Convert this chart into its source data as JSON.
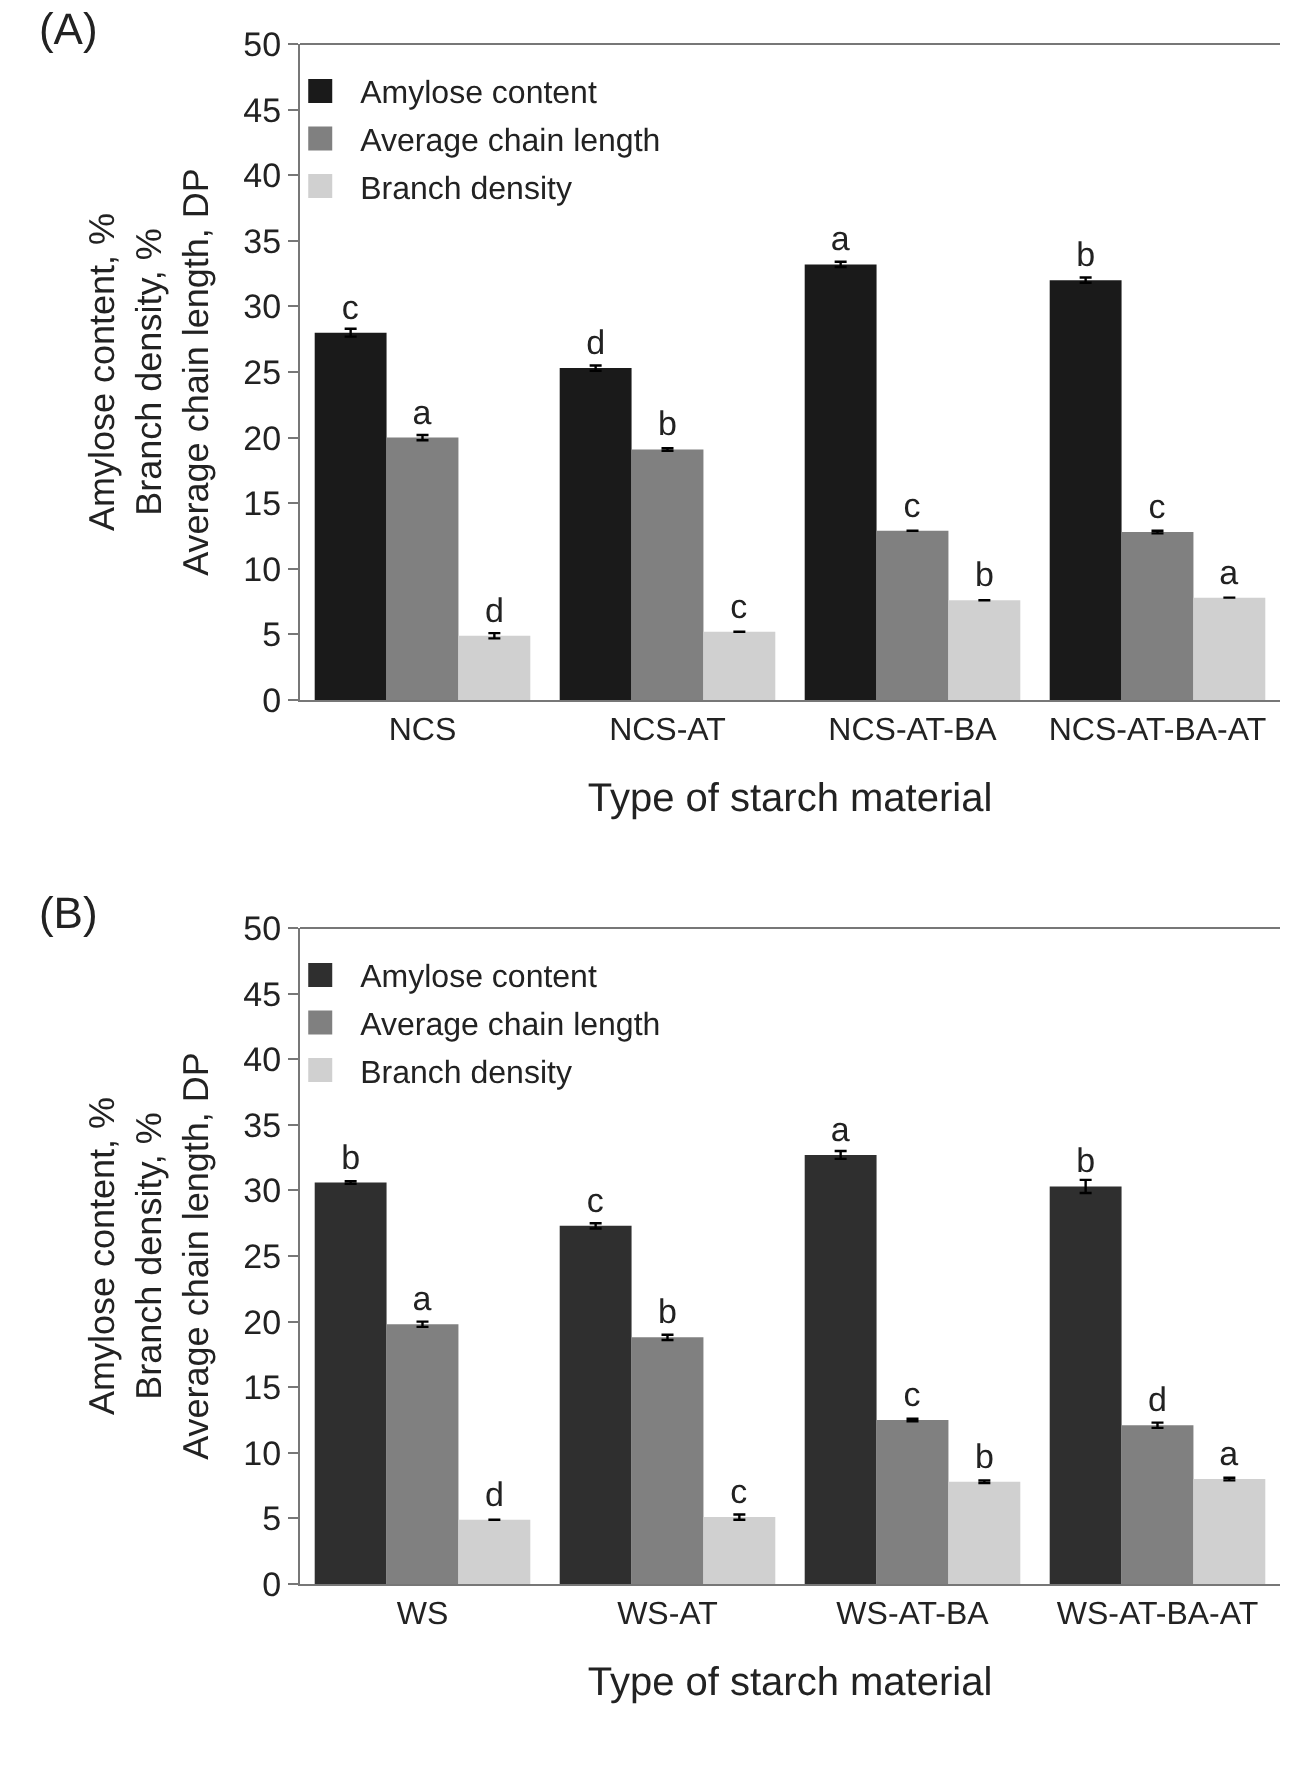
{
  "chart_data": [
    {
      "type": "bar",
      "title": "(A)",
      "xlabel": "Type of starch material",
      "ylabel": "Amylose content, %\nBranch density, %\nAverage chain length, DP",
      "categories": [
        "NCS",
        "NCS-AT",
        "NCS-AT-BA",
        "NCS-AT-BA-AT"
      ],
      "series": [
        {
          "name": "Amylose content",
          "color": "#1a1a1a",
          "values": [
            28.0,
            25.3,
            33.2,
            32.0
          ],
          "errors": [
            0.3,
            0.2,
            0.2,
            0.2
          ],
          "value_labels": [
            "c",
            "d",
            "a",
            "b"
          ]
        },
        {
          "name": "Average chain length",
          "color": "#808080",
          "values": [
            20.0,
            19.1,
            12.9,
            12.8
          ],
          "errors": [
            0.2,
            0.1,
            null,
            0.1
          ],
          "value_labels": [
            "a",
            "b",
            "c",
            "c"
          ]
        },
        {
          "name": "Branch density",
          "color": "#d0d0d0",
          "values": [
            4.9,
            5.2,
            7.6,
            7.8
          ],
          "errors": [
            0.2,
            null,
            null,
            null
          ],
          "value_labels": [
            "d",
            "c",
            "b",
            "a"
          ]
        }
      ],
      "ylim": [
        0,
        50
      ],
      "yticks": [
        0,
        5,
        10,
        15,
        20,
        25,
        30,
        35,
        40,
        45,
        50
      ],
      "legend": "top"
    },
    {
      "type": "bar",
      "title": "(B)",
      "xlabel": "Type of starch material",
      "ylabel": "Amylose content, %\nBranch density, %\nAverage chain length, DP",
      "categories": [
        "WS",
        "WS-AT",
        "WS-AT-BA",
        "WS-AT-BA-AT"
      ],
      "series": [
        {
          "name": "Amylose content",
          "color": "#2f2f2f",
          "values": [
            30.6,
            27.3,
            32.7,
            30.3
          ],
          "errors": [
            0.1,
            0.2,
            0.3,
            0.5
          ],
          "value_labels": [
            "b",
            "c",
            "a",
            "b"
          ]
        },
        {
          "name": "Average chain length",
          "color": "#808080",
          "values": [
            19.8,
            18.8,
            12.5,
            12.1
          ],
          "errors": [
            0.2,
            0.2,
            0.1,
            0.2
          ],
          "value_labels": [
            "a",
            "b",
            "c",
            "d"
          ]
        },
        {
          "name": "Branch density",
          "color": "#d0d0d0",
          "values": [
            4.9,
            5.1,
            7.8,
            8.0
          ],
          "errors": [
            null,
            0.2,
            0.1,
            0.1
          ],
          "value_labels": [
            "d",
            "c",
            "b",
            "a"
          ]
        }
      ],
      "ylim": [
        0,
        50
      ],
      "yticks": [
        0,
        5,
        10,
        15,
        20,
        25,
        30,
        35,
        40,
        45,
        50
      ],
      "legend": "top"
    }
  ]
}
